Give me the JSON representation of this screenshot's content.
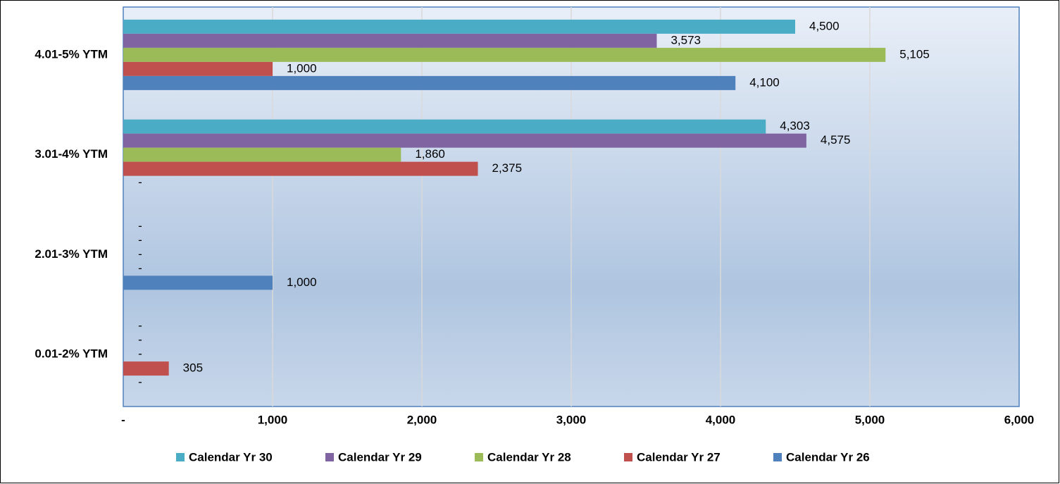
{
  "chart_data": {
    "type": "hbar",
    "categories": [
      "4.01-5% YTM",
      "3.01-4% YTM",
      "2.01-3% YTM",
      "0.01-2% YTM"
    ],
    "series": [
      {
        "name": "Calendar Yr 30",
        "color": "#4bacc6",
        "values": [
          4500,
          4303,
          0,
          0
        ],
        "value_labels": [
          "4,500",
          "4,303",
          "-",
          "-"
        ]
      },
      {
        "name": "Calendar Yr 29",
        "color": "#8064a2",
        "values": [
          3573,
          4575,
          0,
          0
        ],
        "value_labels": [
          "3,573",
          "4,575",
          "-",
          "-"
        ]
      },
      {
        "name": "Calendar Yr 28",
        "color": "#9bbb59",
        "values": [
          5105,
          1860,
          0,
          0
        ],
        "value_labels": [
          "5,105",
          "1,860",
          "-",
          "-"
        ]
      },
      {
        "name": "Calendar Yr 27",
        "color": "#c0504d",
        "values": [
          1000,
          2375,
          0,
          305
        ],
        "value_labels": [
          "1,000",
          "2,375",
          "-",
          "305"
        ]
      },
      {
        "name": "Calendar Yr 26",
        "color": "#4f81bd",
        "values": [
          4100,
          0,
          1000,
          0
        ],
        "value_labels": [
          "4,100",
          "-",
          "1,000",
          "-"
        ]
      }
    ],
    "xlim": [
      0,
      6000
    ],
    "xticks": [
      {
        "value": 0,
        "label": "-"
      },
      {
        "value": 1000,
        "label": "1,000"
      },
      {
        "value": 2000,
        "label": "2,000"
      },
      {
        "value": 3000,
        "label": "3,000"
      },
      {
        "value": 4000,
        "label": "4,000"
      },
      {
        "value": 5000,
        "label": "5,000"
      },
      {
        "value": 6000,
        "label": "6,000"
      }
    ],
    "grid": true,
    "legend": "bottom"
  }
}
